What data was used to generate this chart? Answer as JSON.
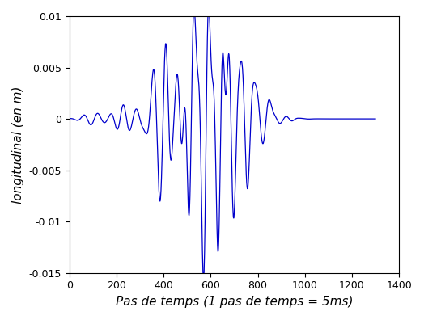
{
  "title": "",
  "xlabel": "Pas de temps (1 pas de temps = 5ms)",
  "ylabel": "longitudinal (en m)",
  "xlim": [
    0,
    1400
  ],
  "ylim": [
    -0.015,
    0.01
  ],
  "line_color": "#0000CC",
  "line_width": 0.9,
  "xticks": [
    0,
    200,
    400,
    600,
    800,
    1000,
    1200,
    1400
  ],
  "yticks": [
    -0.015,
    -0.01,
    -0.005,
    0,
    0.005,
    0.01
  ],
  "background_color": "#ffffff",
  "tick_fontsize": 9,
  "label_fontsize": 11
}
